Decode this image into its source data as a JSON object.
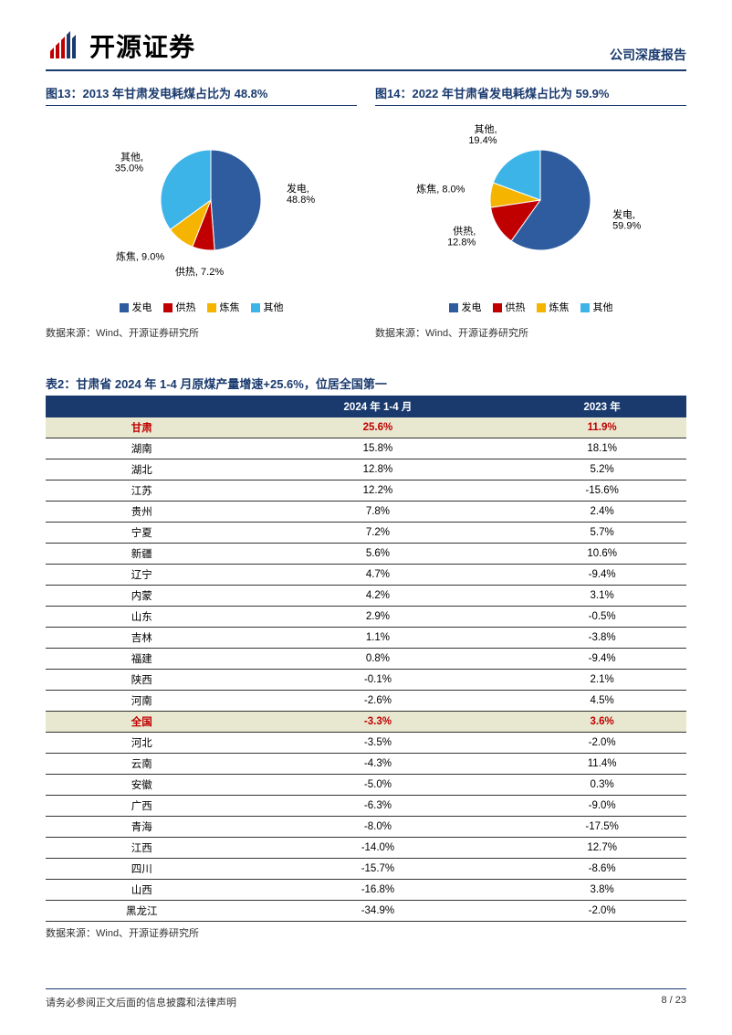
{
  "header": {
    "logo_text": "开源证券",
    "report_type": "公司深度报告"
  },
  "chart_left": {
    "title": "图13：2013 年甘肃发电耗煤占比为 48.8%",
    "type": "pie",
    "slices": [
      {
        "name": "发电",
        "value": 48.8,
        "color": "#2e5c9e",
        "label": "发电,\n48.8%"
      },
      {
        "name": "供热",
        "value": 7.2,
        "color": "#c00000",
        "label": "供热, 7.2%"
      },
      {
        "name": "炼焦",
        "value": 9.0,
        "color": "#f4b400",
        "label": "炼焦, 9.0%"
      },
      {
        "name": "其他",
        "value": 35.0,
        "color": "#3db4e8",
        "label": "其他,\n35.0%"
      }
    ],
    "legend": [
      "发电",
      "供热",
      "炼焦",
      "其他"
    ],
    "legend_colors": [
      "#2e5c9e",
      "#c00000",
      "#f4b400",
      "#3db4e8"
    ],
    "source": "数据来源：Wind、开源证券研究所"
  },
  "chart_right": {
    "title": "图14：2022 年甘肃省发电耗煤占比为 59.9%",
    "type": "pie",
    "slices": [
      {
        "name": "发电",
        "value": 59.9,
        "color": "#2e5c9e",
        "label": "发电,\n59.9%"
      },
      {
        "name": "供热",
        "value": 12.8,
        "color": "#c00000",
        "label": "供热,\n12.8%"
      },
      {
        "name": "炼焦",
        "value": 8.0,
        "color": "#f4b400",
        "label": "炼焦, 8.0%"
      },
      {
        "name": "其他",
        "value": 19.4,
        "color": "#3db4e8",
        "label": "其他,\n19.4%"
      }
    ],
    "legend": [
      "发电",
      "供热",
      "炼焦",
      "其他"
    ],
    "legend_colors": [
      "#2e5c9e",
      "#c00000",
      "#f4b400",
      "#3db4e8"
    ],
    "source": "数据来源：Wind、开源证券研究所"
  },
  "table": {
    "title": "表2：甘肃省 2024 年 1-4 月原煤产量增速+25.6%，位居全国第一",
    "columns": [
      "",
      "2024 年 1-4 月",
      "2023 年"
    ],
    "rows": [
      {
        "name": "甘肃",
        "v1": "25.6%",
        "v2": "11.9%",
        "highlight": true
      },
      {
        "name": "湖南",
        "v1": "15.8%",
        "v2": "18.1%"
      },
      {
        "name": "湖北",
        "v1": "12.8%",
        "v2": "5.2%"
      },
      {
        "name": "江苏",
        "v1": "12.2%",
        "v2": "-15.6%"
      },
      {
        "name": "贵州",
        "v1": "7.8%",
        "v2": "2.4%"
      },
      {
        "name": "宁夏",
        "v1": "7.2%",
        "v2": "5.7%"
      },
      {
        "name": "新疆",
        "v1": "5.6%",
        "v2": "10.6%"
      },
      {
        "name": "辽宁",
        "v1": "4.7%",
        "v2": "-9.4%"
      },
      {
        "name": "内蒙",
        "v1": "4.2%",
        "v2": "3.1%"
      },
      {
        "name": "山东",
        "v1": "2.9%",
        "v2": "-0.5%"
      },
      {
        "name": "吉林",
        "v1": "1.1%",
        "v2": "-3.8%"
      },
      {
        "name": "福建",
        "v1": "0.8%",
        "v2": "-9.4%"
      },
      {
        "name": "陕西",
        "v1": "-0.1%",
        "v2": "2.1%"
      },
      {
        "name": "河南",
        "v1": "-2.6%",
        "v2": "4.5%"
      },
      {
        "name": "全国",
        "v1": "-3.3%",
        "v2": "3.6%",
        "highlight": true
      },
      {
        "name": "河北",
        "v1": "-3.5%",
        "v2": "-2.0%"
      },
      {
        "name": "云南",
        "v1": "-4.3%",
        "v2": "11.4%"
      },
      {
        "name": "安徽",
        "v1": "-5.0%",
        "v2": "0.3%"
      },
      {
        "name": "广西",
        "v1": "-6.3%",
        "v2": "-9.0%"
      },
      {
        "name": "青海",
        "v1": "-8.0%",
        "v2": "-17.5%"
      },
      {
        "name": "江西",
        "v1": "-14.0%",
        "v2": "12.7%"
      },
      {
        "name": "四川",
        "v1": "-15.7%",
        "v2": "-8.6%"
      },
      {
        "name": "山西",
        "v1": "-16.8%",
        "v2": "3.8%"
      },
      {
        "name": "黑龙江",
        "v1": "-34.9%",
        "v2": "-2.0%"
      }
    ],
    "source": "数据来源：Wind、开源证券研究所",
    "header_bg": "#1a3a6e",
    "header_fg": "#ffffff",
    "highlight_bg": "#e8e8d0",
    "highlight_fg": "#c00000"
  },
  "footer": {
    "disclaimer": "请务必参阅正文后面的信息披露和法律声明",
    "page": "8 / 23"
  }
}
